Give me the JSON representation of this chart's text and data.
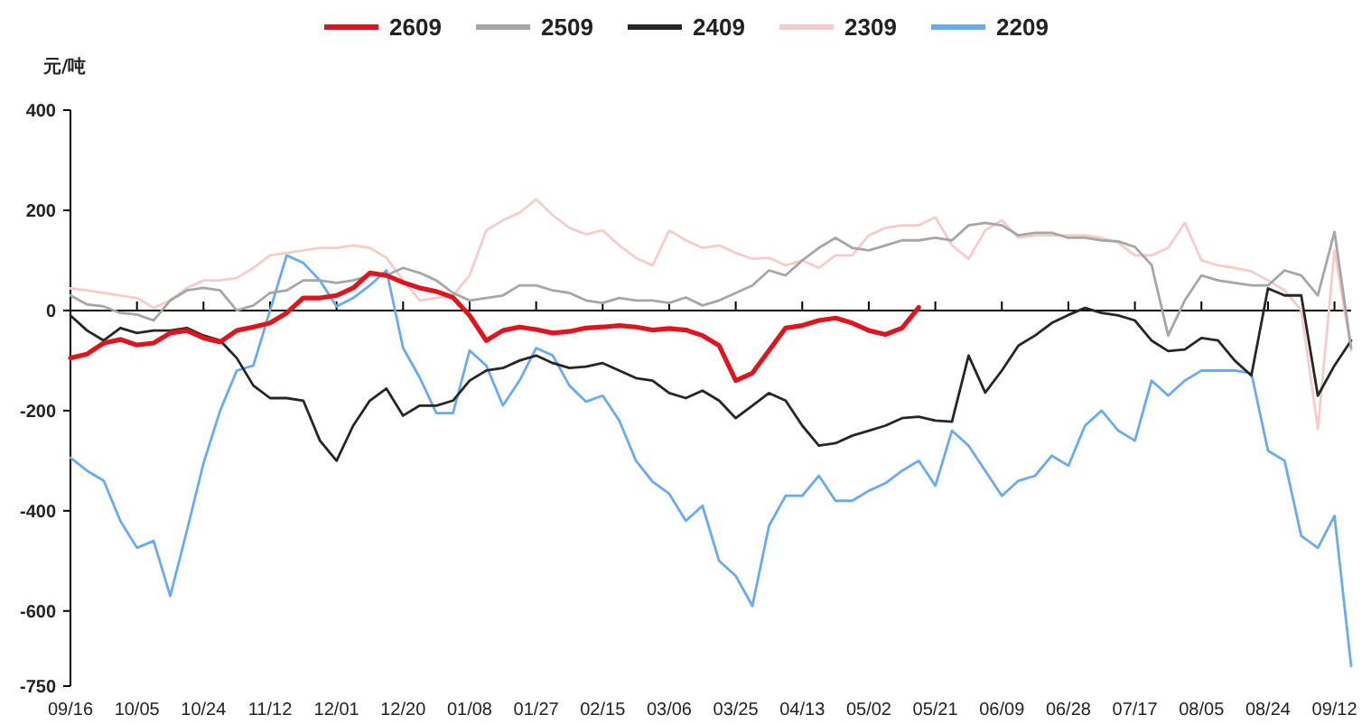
{
  "chart_data": {
    "type": "line",
    "ylabel": "元/吨",
    "legend": "top",
    "line_style": "solid",
    "marker": "none",
    "categories": [
      "09/16",
      null,
      null,
      null,
      "10/05",
      null,
      null,
      null,
      "10/24",
      null,
      null,
      null,
      "11/12",
      null,
      null,
      null,
      "12/01",
      null,
      null,
      null,
      "12/20",
      null,
      null,
      null,
      "01/08",
      null,
      null,
      null,
      "01/27",
      null,
      null,
      null,
      "02/15",
      null,
      null,
      null,
      "03/06",
      null,
      null,
      null,
      "03/25",
      null,
      null,
      null,
      "04/13",
      null,
      null,
      null,
      "05/02",
      null,
      null,
      null,
      "05/21",
      null,
      null,
      null,
      "06/09",
      null,
      null,
      null,
      "06/28",
      null,
      null,
      null,
      "07/17",
      null,
      null,
      null,
      "08/05",
      null,
      null,
      null,
      "08/24",
      null,
      null,
      null,
      "09/12",
      null
    ],
    "ylim": [
      -750,
      400
    ],
    "yticks": [
      400,
      200,
      0,
      -200,
      -400,
      -600,
      -750
    ],
    "series": [
      {
        "name": "2609",
        "color": "#e0141e",
        "values": [
          -95,
          -87,
          -65,
          -58,
          -69,
          -65,
          -45,
          -40,
          -55,
          -63,
          -40,
          -33,
          -25,
          -5,
          25,
          25,
          30,
          45,
          75,
          70,
          56,
          45,
          38,
          26,
          -10,
          -60,
          -40,
          -33,
          -38,
          -45,
          -42,
          -35,
          -33,
          -30,
          -33,
          -39,
          -36,
          -39,
          -50,
          -70,
          -140,
          -125,
          -80,
          -35,
          -30,
          -20,
          -15,
          -25,
          -40,
          -48,
          -35,
          6,
          null,
          null,
          null,
          null,
          null,
          null,
          null,
          null,
          null,
          null,
          null,
          null,
          null,
          null,
          null,
          null,
          null,
          null,
          null,
          null,
          null,
          null,
          null,
          null,
          null,
          null
        ]
      },
      {
        "name": "2509",
        "color": "#a6a6a6",
        "values": [
          30,
          12,
          8,
          -5,
          -8,
          -20,
          20,
          40,
          45,
          40,
          0,
          10,
          35,
          40,
          60,
          60,
          55,
          60,
          70,
          70,
          85,
          75,
          60,
          35,
          20,
          25,
          30,
          50,
          50,
          40,
          35,
          20,
          15,
          25,
          20,
          20,
          15,
          26,
          10,
          20,
          35,
          50,
          80,
          70,
          100,
          125,
          145,
          125,
          120,
          130,
          140,
          140,
          145,
          140,
          170,
          175,
          170,
          150,
          155,
          155,
          145,
          145,
          140,
          138,
          127,
          91,
          -50,
          20,
          70,
          60,
          55,
          50,
          50,
          80,
          70,
          30,
          157,
          -75
        ]
      },
      {
        "name": "2409",
        "color": "#262626",
        "values": [
          -10,
          -40,
          -60,
          -35,
          -45,
          -40,
          -40,
          -35,
          -50,
          -60,
          -95,
          -150,
          -175,
          -175,
          -180,
          -260,
          -300,
          -230,
          -180,
          -156,
          -210,
          -190,
          -190,
          -180,
          -140,
          -120,
          -115,
          -100,
          -90,
          -105,
          -115,
          -112,
          -105,
          -120,
          -135,
          -140,
          -165,
          -175,
          -160,
          -180,
          -215,
          -190,
          -165,
          -180,
          -230,
          -270,
          -265,
          -250,
          -240,
          -230,
          -215,
          -212,
          -220,
          -222,
          -90,
          -164,
          -120,
          -70,
          -50,
          -25,
          -9,
          5,
          -5,
          -10,
          -20,
          -60,
          -81,
          -78,
          -55,
          -60,
          -100,
          -130,
          44,
          30,
          30,
          -170,
          -110,
          -60
        ]
      },
      {
        "name": "2309",
        "color": "#f8cbcb",
        "values": [
          44,
          40,
          35,
          30,
          25,
          5,
          20,
          45,
          60,
          60,
          65,
          85,
          110,
          115,
          120,
          125,
          125,
          130,
          125,
          105,
          60,
          20,
          25,
          30,
          70,
          160,
          180,
          195,
          222,
          190,
          165,
          152,
          160,
          130,
          105,
          90,
          160,
          140,
          125,
          130,
          115,
          103,
          105,
          90,
          100,
          85,
          110,
          110,
          150,
          165,
          170,
          170,
          186,
          130,
          103,
          160,
          180,
          145,
          150,
          150,
          150,
          150,
          145,
          135,
          110,
          110,
          125,
          175,
          100,
          90,
          85,
          78,
          60,
          40,
          0,
          -236,
          120,
          -80
        ]
      },
      {
        "name": "2209",
        "color": "#6aaaf0",
        "values": [
          -294,
          -320,
          -340,
          -420,
          -474,
          -460,
          -570,
          -440,
          -305,
          -200,
          -120,
          -110,
          0,
          110,
          95,
          60,
          8,
          25,
          50,
          80,
          -75,
          -134,
          -205,
          -205,
          -80,
          -110,
          -190,
          -140,
          -75,
          -90,
          -150,
          -182,
          -170,
          -220,
          -300,
          -342,
          -366,
          -420,
          -390,
          -500,
          -530,
          -590,
          -430,
          -370,
          -370,
          -330,
          -380,
          -380,
          -360,
          -345,
          -320,
          -300,
          -350,
          -240,
          -270,
          -320,
          -370,
          -340,
          -330,
          -290,
          -310,
          -230,
          -200,
          -240,
          -260,
          -140,
          -170,
          -140,
          -120,
          -120,
          -120,
          -125,
          -280,
          -300,
          -450,
          -474,
          -410,
          -710
        ]
      }
    ]
  }
}
